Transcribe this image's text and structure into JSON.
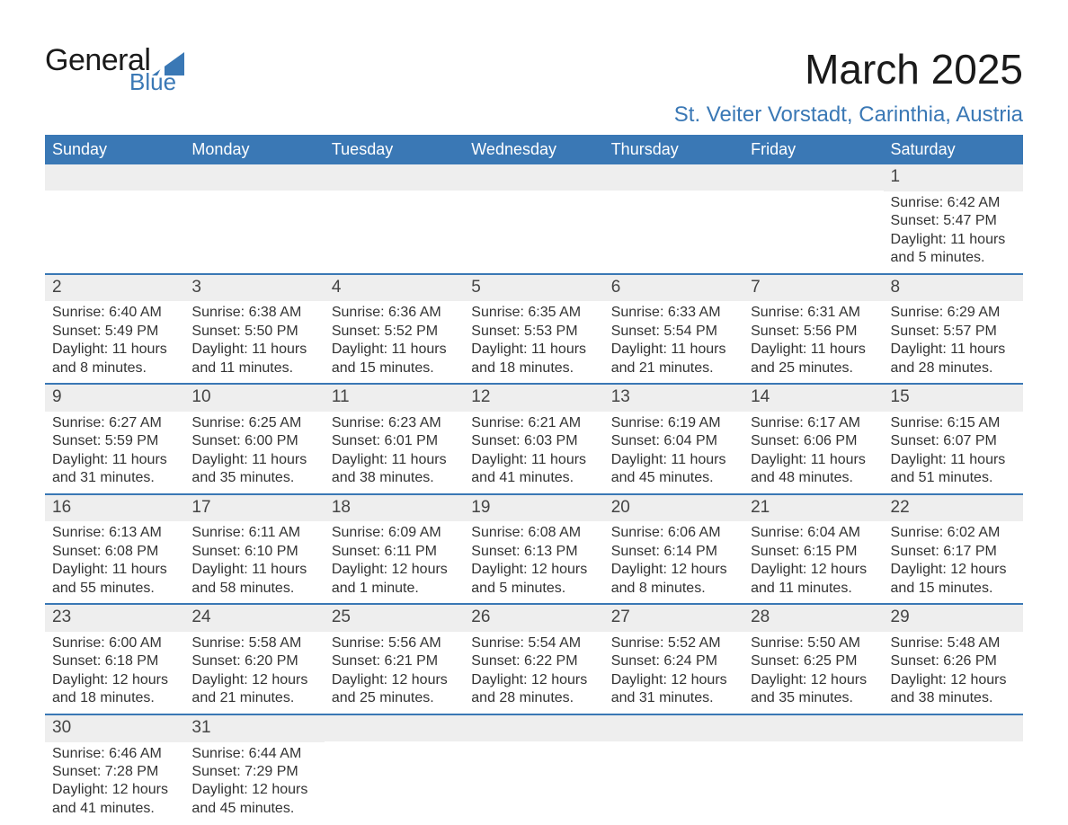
{
  "logo": {
    "word1": "General",
    "word2": "Blue",
    "triangle_color": "#3a78b5",
    "text_color": "#1a1a1a"
  },
  "header": {
    "month_title": "March 2025",
    "location": "St. Veiter Vorstadt, Carinthia, Austria"
  },
  "colors": {
    "header_bg": "#3a78b5",
    "header_text": "#ffffff",
    "daynum_bg": "#eeeeee",
    "row_divider": "#3a78b5",
    "body_text": "#333333",
    "page_bg": "#ffffff"
  },
  "typography": {
    "title_fontsize": 46,
    "location_fontsize": 24,
    "weekday_fontsize": 18,
    "daynum_fontsize": 19,
    "body_fontsize": 16,
    "font_family": "Arial"
  },
  "weekdays": [
    "Sunday",
    "Monday",
    "Tuesday",
    "Wednesday",
    "Thursday",
    "Friday",
    "Saturday"
  ],
  "labels": {
    "sunrise": "Sunrise:",
    "sunset": "Sunset:",
    "daylight": "Daylight:"
  },
  "weeks": [
    [
      {
        "blank": true
      },
      {
        "blank": true
      },
      {
        "blank": true
      },
      {
        "blank": true
      },
      {
        "blank": true
      },
      {
        "blank": true
      },
      {
        "day": "1",
        "sunrise": "6:42 AM",
        "sunset": "5:47 PM",
        "daylight": "11 hours and 5 minutes."
      }
    ],
    [
      {
        "day": "2",
        "sunrise": "6:40 AM",
        "sunset": "5:49 PM",
        "daylight": "11 hours and 8 minutes."
      },
      {
        "day": "3",
        "sunrise": "6:38 AM",
        "sunset": "5:50 PM",
        "daylight": "11 hours and 11 minutes."
      },
      {
        "day": "4",
        "sunrise": "6:36 AM",
        "sunset": "5:52 PM",
        "daylight": "11 hours and 15 minutes."
      },
      {
        "day": "5",
        "sunrise": "6:35 AM",
        "sunset": "5:53 PM",
        "daylight": "11 hours and 18 minutes."
      },
      {
        "day": "6",
        "sunrise": "6:33 AM",
        "sunset": "5:54 PM",
        "daylight": "11 hours and 21 minutes."
      },
      {
        "day": "7",
        "sunrise": "6:31 AM",
        "sunset": "5:56 PM",
        "daylight": "11 hours and 25 minutes."
      },
      {
        "day": "8",
        "sunrise": "6:29 AM",
        "sunset": "5:57 PM",
        "daylight": "11 hours and 28 minutes."
      }
    ],
    [
      {
        "day": "9",
        "sunrise": "6:27 AM",
        "sunset": "5:59 PM",
        "daylight": "11 hours and 31 minutes."
      },
      {
        "day": "10",
        "sunrise": "6:25 AM",
        "sunset": "6:00 PM",
        "daylight": "11 hours and 35 minutes."
      },
      {
        "day": "11",
        "sunrise": "6:23 AM",
        "sunset": "6:01 PM",
        "daylight": "11 hours and 38 minutes."
      },
      {
        "day": "12",
        "sunrise": "6:21 AM",
        "sunset": "6:03 PM",
        "daylight": "11 hours and 41 minutes."
      },
      {
        "day": "13",
        "sunrise": "6:19 AM",
        "sunset": "6:04 PM",
        "daylight": "11 hours and 45 minutes."
      },
      {
        "day": "14",
        "sunrise": "6:17 AM",
        "sunset": "6:06 PM",
        "daylight": "11 hours and 48 minutes."
      },
      {
        "day": "15",
        "sunrise": "6:15 AM",
        "sunset": "6:07 PM",
        "daylight": "11 hours and 51 minutes."
      }
    ],
    [
      {
        "day": "16",
        "sunrise": "6:13 AM",
        "sunset": "6:08 PM",
        "daylight": "11 hours and 55 minutes."
      },
      {
        "day": "17",
        "sunrise": "6:11 AM",
        "sunset": "6:10 PM",
        "daylight": "11 hours and 58 minutes."
      },
      {
        "day": "18",
        "sunrise": "6:09 AM",
        "sunset": "6:11 PM",
        "daylight": "12 hours and 1 minute."
      },
      {
        "day": "19",
        "sunrise": "6:08 AM",
        "sunset": "6:13 PM",
        "daylight": "12 hours and 5 minutes."
      },
      {
        "day": "20",
        "sunrise": "6:06 AM",
        "sunset": "6:14 PM",
        "daylight": "12 hours and 8 minutes."
      },
      {
        "day": "21",
        "sunrise": "6:04 AM",
        "sunset": "6:15 PM",
        "daylight": "12 hours and 11 minutes."
      },
      {
        "day": "22",
        "sunrise": "6:02 AM",
        "sunset": "6:17 PM",
        "daylight": "12 hours and 15 minutes."
      }
    ],
    [
      {
        "day": "23",
        "sunrise": "6:00 AM",
        "sunset": "6:18 PM",
        "daylight": "12 hours and 18 minutes."
      },
      {
        "day": "24",
        "sunrise": "5:58 AM",
        "sunset": "6:20 PM",
        "daylight": "12 hours and 21 minutes."
      },
      {
        "day": "25",
        "sunrise": "5:56 AM",
        "sunset": "6:21 PM",
        "daylight": "12 hours and 25 minutes."
      },
      {
        "day": "26",
        "sunrise": "5:54 AM",
        "sunset": "6:22 PM",
        "daylight": "12 hours and 28 minutes."
      },
      {
        "day": "27",
        "sunrise": "5:52 AM",
        "sunset": "6:24 PM",
        "daylight": "12 hours and 31 minutes."
      },
      {
        "day": "28",
        "sunrise": "5:50 AM",
        "sunset": "6:25 PM",
        "daylight": "12 hours and 35 minutes."
      },
      {
        "day": "29",
        "sunrise": "5:48 AM",
        "sunset": "6:26 PM",
        "daylight": "12 hours and 38 minutes."
      }
    ],
    [
      {
        "day": "30",
        "sunrise": "6:46 AM",
        "sunset": "7:28 PM",
        "daylight": "12 hours and 41 minutes."
      },
      {
        "day": "31",
        "sunrise": "6:44 AM",
        "sunset": "7:29 PM",
        "daylight": "12 hours and 45 minutes."
      },
      {
        "blank": true
      },
      {
        "blank": true
      },
      {
        "blank": true
      },
      {
        "blank": true
      },
      {
        "blank": true
      }
    ]
  ]
}
